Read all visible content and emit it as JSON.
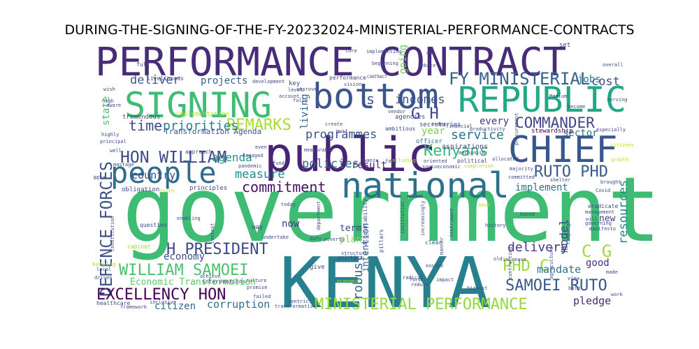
{
  "chart_data": {
    "type": "wordcloud",
    "title": "DURING-THE-SIGNING-OF-THE-FY-20232024-MINISTERIAL-PERFORMANCE-CONTRACTS",
    "background": "#ffffff",
    "colormap": "viridis",
    "words": [
      {
        "text": "government",
        "weight": 1.0,
        "color": "#3fbc73"
      },
      {
        "text": "KENYA",
        "weight": 0.78,
        "color": "#27808e"
      },
      {
        "text": "PERFORMANCE CONTRACT",
        "weight": 0.48,
        "color": "#472c7a"
      },
      {
        "text": "public",
        "weight": 0.52,
        "color": "#482475"
      },
      {
        "text": "bottom",
        "weight": 0.4,
        "color": "#3a548c"
      },
      {
        "text": "national",
        "weight": 0.4,
        "color": "#2d708e"
      },
      {
        "text": "SIGNING",
        "weight": 0.4,
        "color": "#3dbc74"
      },
      {
        "text": "REPUBLIC",
        "weight": 0.4,
        "color": "#22a884"
      },
      {
        "text": "CHIEF",
        "weight": 0.4,
        "color": "#38578c"
      },
      {
        "text": "people",
        "weight": 0.36,
        "color": "#2f6c8e"
      },
      {
        "text": "DEFENCE FORCES",
        "weight": 0.18,
        "color": "#3b528b"
      },
      {
        "text": "FY MINISTERIAL",
        "weight": 0.16,
        "color": "#34618d"
      },
      {
        "text": "HON WILLIAM",
        "weight": 0.16,
        "color": "#3e4a89"
      },
      {
        "text": "REMARKS",
        "weight": 0.15,
        "color": "#a8db34"
      },
      {
        "text": "COMMANDER",
        "weight": 0.15,
        "color": "#414487"
      },
      {
        "text": "commitment",
        "weight": 0.15,
        "color": "#471063"
      },
      {
        "text": "Kenyans",
        "weight": 0.15,
        "color": "#37b878"
      },
      {
        "text": "RUTO PHD",
        "weight": 0.15,
        "color": "#375a8c"
      },
      {
        "text": "MINISTERIAL PERFORMANCE",
        "weight": 0.16,
        "color": "#95d840"
      },
      {
        "text": "EXCELLENCY HON",
        "weight": 0.16,
        "color": "#440154"
      },
      {
        "text": "WILLIAM SAMOEI",
        "weight": 0.16,
        "color": "#4ac16d"
      },
      {
        "text": "H PRESIDENT",
        "weight": 0.16,
        "color": "#3e4989"
      },
      {
        "text": "SAMOEI RUTO",
        "weight": 0.15,
        "color": "#38588c"
      },
      {
        "text": "PHD C",
        "weight": 0.15,
        "color": "#9cd93b"
      },
      {
        "text": "C G",
        "weight": 0.15,
        "color": "#a0da39"
      },
      {
        "text": "G H",
        "weight": 0.14,
        "color": "#414487"
      },
      {
        "text": "time",
        "weight": 0.14,
        "color": "#3e4989"
      },
      {
        "text": "priorities",
        "weight": 0.12,
        "color": "#26828e"
      },
      {
        "text": "service",
        "weight": 0.12,
        "color": "#2c728e"
      },
      {
        "text": "delivery",
        "weight": 0.12,
        "color": "#443983"
      },
      {
        "text": "programmes",
        "weight": 0.11,
        "color": "#3b528b"
      },
      {
        "text": "incomes",
        "weight": 0.11,
        "color": "#3b528b"
      },
      {
        "text": "deliver",
        "weight": 0.11,
        "color": "#365c8d"
      },
      {
        "text": "cost",
        "weight": 0.11,
        "color": "#3e4989"
      },
      {
        "text": "resources",
        "weight": 0.11,
        "color": "#23898e"
      },
      {
        "text": "robust",
        "weight": 0.11,
        "color": "#31688e"
      },
      {
        "text": "measure",
        "weight": 0.11,
        "color": "#238a8d"
      },
      {
        "text": "policies",
        "weight": 0.1,
        "color": "#33638d"
      },
      {
        "text": "agenda",
        "weight": 0.1,
        "color": "#1f958b"
      },
      {
        "text": "country",
        "weight": 0.1,
        "color": "#3e4a89"
      },
      {
        "text": "implement",
        "weight": 0.09,
        "color": "#2a788e"
      },
      {
        "text": "mandate",
        "weight": 0.09,
        "color": "#2c728e"
      },
      {
        "text": "corruption",
        "weight": 0.09,
        "color": "#2f6c8e"
      },
      {
        "text": "pledge",
        "weight": 0.09,
        "color": "#482878"
      },
      {
        "text": "model",
        "weight": 0.09,
        "color": "#3f4788"
      },
      {
        "text": "citizen",
        "weight": 0.08,
        "color": "#31688e"
      },
      {
        "text": "projects",
        "weight": 0.08,
        "color": "#33638d"
      },
      {
        "text": "living",
        "weight": 0.08,
        "color": "#34618d"
      },
      {
        "text": "state",
        "weight": 0.08,
        "color": "#4ac16d"
      },
      {
        "text": "jobs",
        "weight": 0.08,
        "color": "#2a768e"
      },
      {
        "text": "every",
        "weight": 0.08,
        "color": "#443983"
      },
      {
        "text": "year",
        "weight": 0.08,
        "color": "#7ad151"
      },
      {
        "text": "sector",
        "weight": 0.08,
        "color": "#2d718e"
      },
      {
        "text": "result",
        "weight": 0.07,
        "color": "#482475"
      },
      {
        "text": "economy",
        "weight": 0.07,
        "color": "#3b528b"
      },
      {
        "text": "term",
        "weight": 0.07,
        "color": "#3e4989"
      },
      {
        "text": "plan",
        "weight": 0.07,
        "color": "#7fd34e"
      },
      {
        "text": "now",
        "weight": 0.07,
        "color": "#443983"
      },
      {
        "text": "good",
        "weight": 0.07,
        "color": "#472d7b"
      },
      {
        "text": "new",
        "weight": 0.07,
        "color": "#414487"
      },
      {
        "text": "intention",
        "weight": 0.07,
        "color": "#355f8d"
      },
      {
        "text": "going",
        "weight": 0.07,
        "color": "#75d054"
      },
      {
        "text": "Economic Transformation",
        "weight": 0.06,
        "color": "#5ec962"
      },
      {
        "text": "Transformation Agenda",
        "weight": 0.05,
        "color": "#3b528b"
      },
      {
        "text": "s",
        "weight": 0.09,
        "color": "#3b528b"
      },
      {
        "text": "implementation",
        "weight": 0.03,
        "color": "#b5de2b"
      },
      {
        "text": "tremendous",
        "weight": 0.03,
        "color": "#3e4989"
      },
      {
        "text": "livelihoods",
        "weight": 0.03,
        "color": "#3e4989"
      },
      {
        "text": "performance",
        "weight": 0.03,
        "color": "#3e4989"
      },
      {
        "text": "aspirations",
        "weight": 0.04,
        "color": "#3e4989"
      },
      {
        "text": "stewardship",
        "weight": 0.04,
        "color": "#440154"
      },
      {
        "text": "officer",
        "weight": 0.04,
        "color": "#2a788e"
      },
      {
        "text": "agencies",
        "weight": 0.04,
        "color": "#3e4989"
      },
      {
        "text": "secretaries",
        "weight": 0.04,
        "color": "#3e4989"
      },
      {
        "text": "ambitious",
        "weight": 0.03,
        "color": "#3e4989"
      },
      {
        "text": "approach",
        "weight": 0.03,
        "color": "#3e4989"
      },
      {
        "text": "pandemic",
        "weight": 0.03,
        "color": "#3e4989"
      },
      {
        "text": "funds",
        "weight": 0.03,
        "color": "#3e4989"
      },
      {
        "text": "engaged",
        "weight": 0.03,
        "color": "#3e4989"
      },
      {
        "text": "obligation",
        "weight": 0.03,
        "color": "#3e4989"
      },
      {
        "text": "principles",
        "weight": 0.03,
        "color": "#3e4989"
      },
      {
        "text": "question",
        "weight": 0.03,
        "color": "#3e4989"
      },
      {
        "text": "enabling",
        "weight": 0.03,
        "color": "#3e4989"
      },
      {
        "text": "cabinet",
        "weight": 0.03,
        "color": "#95d840"
      },
      {
        "text": "interventions",
        "weight": 0.03,
        "color": "#3e4989"
      },
      {
        "text": "healthcare",
        "weight": 0.03,
        "color": "#3e4989"
      },
      {
        "text": "framework",
        "weight": 0.03,
        "color": "#3e4989"
      },
      {
        "text": "inclusive",
        "weight": 0.03,
        "color": "#3e4989"
      },
      {
        "text": "accountability",
        "weight": 0.03,
        "color": "#3e4989"
      },
      {
        "text": "pillars",
        "weight": 0.03,
        "color": "#3e4989"
      },
      {
        "text": "structure",
        "weight": 0.03,
        "color": "#3e4989"
      },
      {
        "text": "politics",
        "weight": 0.03,
        "color": "#3e4989"
      },
      {
        "text": "radical",
        "weight": 0.03,
        "color": "#3e4989"
      },
      {
        "text": "poverty",
        "weight": 0.03,
        "color": "#3e4989"
      },
      {
        "text": "transformative",
        "weight": 0.03,
        "color": "#3e4989"
      },
      {
        "text": "promise",
        "weight": 0.03,
        "color": "#3e4989"
      },
      {
        "text": "institution",
        "weight": 0.03,
        "color": "#3e4989"
      },
      {
        "text": "increasingly",
        "weight": 0.03,
        "color": "#3e4989"
      },
      {
        "text": "socioeconomic",
        "weight": 0.03,
        "color": "#3e4989"
      },
      {
        "text": "completion",
        "weight": 0.03,
        "color": "#b5de2b"
      },
      {
        "text": "political",
        "weight": 0.03,
        "color": "#3e4989"
      },
      {
        "text": "committed",
        "weight": 0.03,
        "color": "#3e4989"
      },
      {
        "text": "majority",
        "weight": 0.03,
        "color": "#3e4989"
      },
      {
        "text": "oriented",
        "weight": 0.03,
        "color": "#3e4989"
      },
      {
        "text": "mechanism",
        "weight": 0.03,
        "color": "#3e4989"
      },
      {
        "text": "allocated",
        "weight": 0.03,
        "color": "#3e4989"
      },
      {
        "text": "productivity",
        "weight": 0.03,
        "color": "#3e4989"
      },
      {
        "text": "financial",
        "weight": 0.03,
        "color": "#3e4989"
      },
      {
        "text": "procurement",
        "weight": 0.03,
        "color": "#3e4989"
      },
      {
        "text": "eradicate",
        "weight": 0.03,
        "color": "#3e4989"
      },
      {
        "text": "management",
        "weight": 0.03,
        "color": "#3e4989"
      },
      {
        "text": "governing",
        "weight": 0.03,
        "color": "#3e4989"
      },
      {
        "text": "manifesto",
        "weight": 0.03,
        "color": "#3e4989"
      },
      {
        "text": "agriculture",
        "weight": 0.03,
        "color": "#3e4989"
      },
      {
        "text": "history",
        "weight": 0.03,
        "color": "#3e4989"
      },
      {
        "text": "contracting",
        "weight": 0.03,
        "color": "#3e4989"
      },
      {
        "text": "campaign",
        "weight": 0.03,
        "color": "#3e4989"
      },
      {
        "text": "brought",
        "weight": 0.03,
        "color": "#3e4989"
      },
      {
        "text": "especially",
        "weight": 0.03,
        "color": "#3e4989"
      },
      {
        "text": "serving",
        "weight": 0.03,
        "color": "#3e4989"
      },
      {
        "text": "become",
        "weight": 0.03,
        "color": "#3e4989"
      },
      {
        "text": "Medium",
        "weight": 0.03,
        "color": "#3e4989"
      },
      {
        "text": "overall",
        "weight": 0.03,
        "color": "#3e4989"
      },
      {
        "text": "debate",
        "weight": 0.03,
        "color": "#3e4989"
      },
      {
        "text": "due",
        "weight": 0.03,
        "color": "#3e4989"
      },
      {
        "text": "set",
        "weight": 0.03,
        "color": "#3e4989"
      },
      {
        "text": "core",
        "weight": 0.03,
        "color": "#3e4989"
      },
      {
        "text": "implementing",
        "weight": 0.03,
        "color": "#3e4989"
      },
      {
        "text": "beginning",
        "weight": 0.03,
        "color": "#3e4989"
      },
      {
        "text": "CONTRACT",
        "weight": 0.03,
        "color": "#3e4989"
      },
      {
        "text": "vision",
        "weight": 0.03,
        "color": "#3e4989"
      },
      {
        "text": "development",
        "weight": 0.03,
        "color": "#3e4989"
      },
      {
        "text": "key",
        "weight": 0.03,
        "color": "#3e4989"
      },
      {
        "text": "level",
        "weight": 0.03,
        "color": "#3e4989"
      },
      {
        "text": "account",
        "weight": 0.03,
        "color": "#3e4989"
      },
      {
        "text": "improve",
        "weight": 0.03,
        "color": "#3e4989"
      },
      {
        "text": "fully",
        "weight": 0.03,
        "color": "#3e4989"
      },
      {
        "text": "full",
        "weight": 0.03,
        "color": "#3e4989"
      },
      {
        "text": "wish",
        "weight": 0.03,
        "color": "#3e4989"
      },
      {
        "text": "high",
        "weight": 0.03,
        "color": "#3e4989"
      },
      {
        "text": "aware",
        "weight": 0.03,
        "color": "#3e4989"
      },
      {
        "text": "highly",
        "weight": 0.03,
        "color": "#3e4989"
      },
      {
        "text": "principal",
        "weight": 0.03,
        "color": "#3e4989"
      },
      {
        "text": "well",
        "weight": 0.03,
        "color": "#3e4989"
      },
      {
        "text": "mastage",
        "weight": 0.03,
        "color": "#3e4989"
      },
      {
        "text": "BETA",
        "weight": 0.03,
        "color": "#3e4989"
      },
      {
        "text": "Youth",
        "weight": 0.03,
        "color": "#b5de2b"
      },
      {
        "text": "even",
        "weight": 0.03,
        "color": "#3e4989"
      },
      {
        "text": "measurable",
        "weight": 0.03,
        "color": "#3e4989"
      },
      {
        "text": "create",
        "weight": 0.03,
        "color": "#3e4989"
      },
      {
        "text": "must",
        "weight": 0.03,
        "color": "#3e4989"
      },
      {
        "text": "Kwanza",
        "weight": 0.03,
        "color": "#3e4989"
      },
      {
        "text": "fact",
        "weight": 0.03,
        "color": "#3e4989"
      },
      {
        "text": "including",
        "weight": 0.03,
        "color": "#b5de2b"
      },
      {
        "text": "vendor",
        "weight": 0.03,
        "color": "#3e4989"
      },
      {
        "text": "order",
        "weight": 0.03,
        "color": "#3e4989"
      },
      {
        "text": "today",
        "weight": 0.03,
        "color": "#3e4989"
      },
      {
        "text": "context",
        "weight": 0.03,
        "color": "#3e4989"
      },
      {
        "text": "undertake",
        "weight": 0.03,
        "color": "#3e4989"
      },
      {
        "text": "way",
        "weight": 0.03,
        "color": "#3e4989"
      },
      {
        "text": "achieve",
        "weight": 0.03,
        "color": "#3e4989"
      },
      {
        "text": "duty",
        "weight": 0.03,
        "color": "#3e4989"
      },
      {
        "text": "department",
        "weight": 0.03,
        "color": "#3e4989"
      },
      {
        "text": "give",
        "weight": 0.03,
        "color": "#3e4989"
      },
      {
        "text": "clear",
        "weight": 0.03,
        "color": "#3e4989"
      },
      {
        "text": "ensure",
        "weight": 0.03,
        "color": "#3e4989"
      },
      {
        "text": "impact",
        "weight": 0.03,
        "color": "#3e4989"
      },
      {
        "text": "form",
        "weight": 0.03,
        "color": "#3e4989"
      },
      {
        "text": "reduce",
        "weight": 0.03,
        "color": "#3e4989"
      },
      {
        "text": "centric",
        "weight": 0.03,
        "color": "#3e4989"
      },
      {
        "text": "failed",
        "weight": 0.03,
        "color": "#3e4989"
      },
      {
        "text": "culture",
        "weight": 0.03,
        "color": "#3e4989"
      },
      {
        "text": "economic",
        "weight": 0.03,
        "color": "#b5de2b"
      },
      {
        "text": "keeping",
        "weight": 0.03,
        "color": "#b5de2b"
      },
      {
        "text": "local",
        "weight": 0.03,
        "color": "#3e4989"
      },
      {
        "text": "driven",
        "weight": 0.03,
        "color": "#3e4989"
      },
      {
        "text": "Constitution",
        "weight": 0.03,
        "color": "#3e4989"
      },
      {
        "text": "highest",
        "weight": 0.03,
        "color": "#3e4989"
      },
      {
        "text": "bold",
        "weight": 0.03,
        "color": "#3e4989"
      },
      {
        "text": "made",
        "weight": 0.03,
        "color": "#3e4989"
      },
      {
        "text": "work",
        "weight": 0.03,
        "color": "#3e4989"
      },
      {
        "text": "view",
        "weight": 0.03,
        "color": "#3e4989"
      },
      {
        "text": "increase",
        "weight": 0.03,
        "color": "#3e4989"
      },
      {
        "text": "old",
        "weight": 0.03,
        "color": "#3e4989"
      },
      {
        "text": "manner",
        "weight": 0.03,
        "color": "#3e4989"
      },
      {
        "text": "instrument",
        "weight": 0.03,
        "color": "#3e4989"
      },
      {
        "text": "Covid",
        "weight": 0.03,
        "color": "#3e4989"
      },
      {
        "text": "shelter",
        "weight": 0.03,
        "color": "#3e4989"
      },
      {
        "text": "will",
        "weight": 0.03,
        "color": "#3e4989"
      },
      {
        "text": "growth",
        "weight": 0.03,
        "color": "#b5de2b"
      },
      {
        "text": "citizens",
        "weight": 0.03,
        "color": "#b5de2b"
      },
      {
        "text": "based",
        "weight": 0.03,
        "color": "#3e4989"
      },
      {
        "text": "best",
        "weight": 0.03,
        "color": "#b5de2b"
      }
    ]
  }
}
